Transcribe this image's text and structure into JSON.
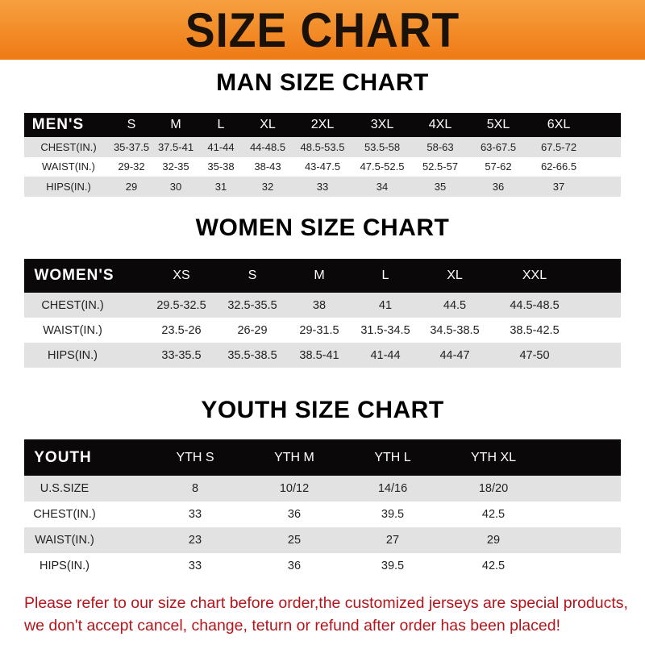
{
  "title": "SIZE CHART",
  "men": {
    "title": "MAN SIZE CHART",
    "header": [
      "MEN'S",
      "S",
      "M",
      "L",
      "XL",
      "2XL",
      "3XL",
      "4XL",
      "5XL",
      "6XL"
    ],
    "rows": [
      [
        "CHEST(IN.)",
        "35-37.5",
        "37.5-41",
        "41-44",
        "44-48.5",
        "48.5-53.5",
        "53.5-58",
        "58-63",
        "63-67.5",
        "67.5-72"
      ],
      [
        "WAIST(IN.)",
        "29-32",
        "32-35",
        "35-38",
        "38-43",
        "43-47.5",
        "47.5-52.5",
        "52.5-57",
        "57-62",
        "62-66.5"
      ],
      [
        "HIPS(IN.)",
        "29",
        "30",
        "31",
        "32",
        "33",
        "34",
        "35",
        "36",
        "37"
      ]
    ]
  },
  "women": {
    "title": "WOMEN SIZE CHART",
    "header": [
      "WOMEN'S",
      "XS",
      "S",
      "M",
      "L",
      "XL",
      "XXL"
    ],
    "rows": [
      [
        "CHEST(IN.)",
        "29.5-32.5",
        "32.5-35.5",
        "38",
        "41",
        "44.5",
        "44.5-48.5"
      ],
      [
        "WAIST(IN.)",
        "23.5-26",
        "26-29",
        "29-31.5",
        "31.5-34.5",
        "34.5-38.5",
        "38.5-42.5"
      ],
      [
        "HIPS(IN.)",
        "33-35.5",
        "35.5-38.5",
        "38.5-41",
        "41-44",
        "44-47",
        "47-50"
      ]
    ]
  },
  "youth": {
    "title": "YOUTH SIZE CHART",
    "header": [
      "YOUTH",
      "YTH S",
      "YTH M",
      "YTH L",
      "YTH XL"
    ],
    "rows": [
      [
        "U.S.SIZE",
        "8",
        "10/12",
        "14/16",
        "18/20"
      ],
      [
        "CHEST(IN.)",
        "33",
        "36",
        "39.5",
        "42.5"
      ],
      [
        "WAIST(IN.)",
        "23",
        "25",
        "27",
        "29"
      ],
      [
        "HIPS(IN.)",
        "33",
        "36",
        "39.5",
        "42.5"
      ]
    ]
  },
  "notice": [
    "Please refer to our size chart before order,the customized jerseys are special products,",
    "we don't accept cancel, change, teturn or refund after order has been placed!"
  ],
  "colors": {
    "banner": "#ee7a14",
    "header_row": "#0a0808",
    "stripe": "#e2e2e2",
    "notice": "#b3151b"
  }
}
